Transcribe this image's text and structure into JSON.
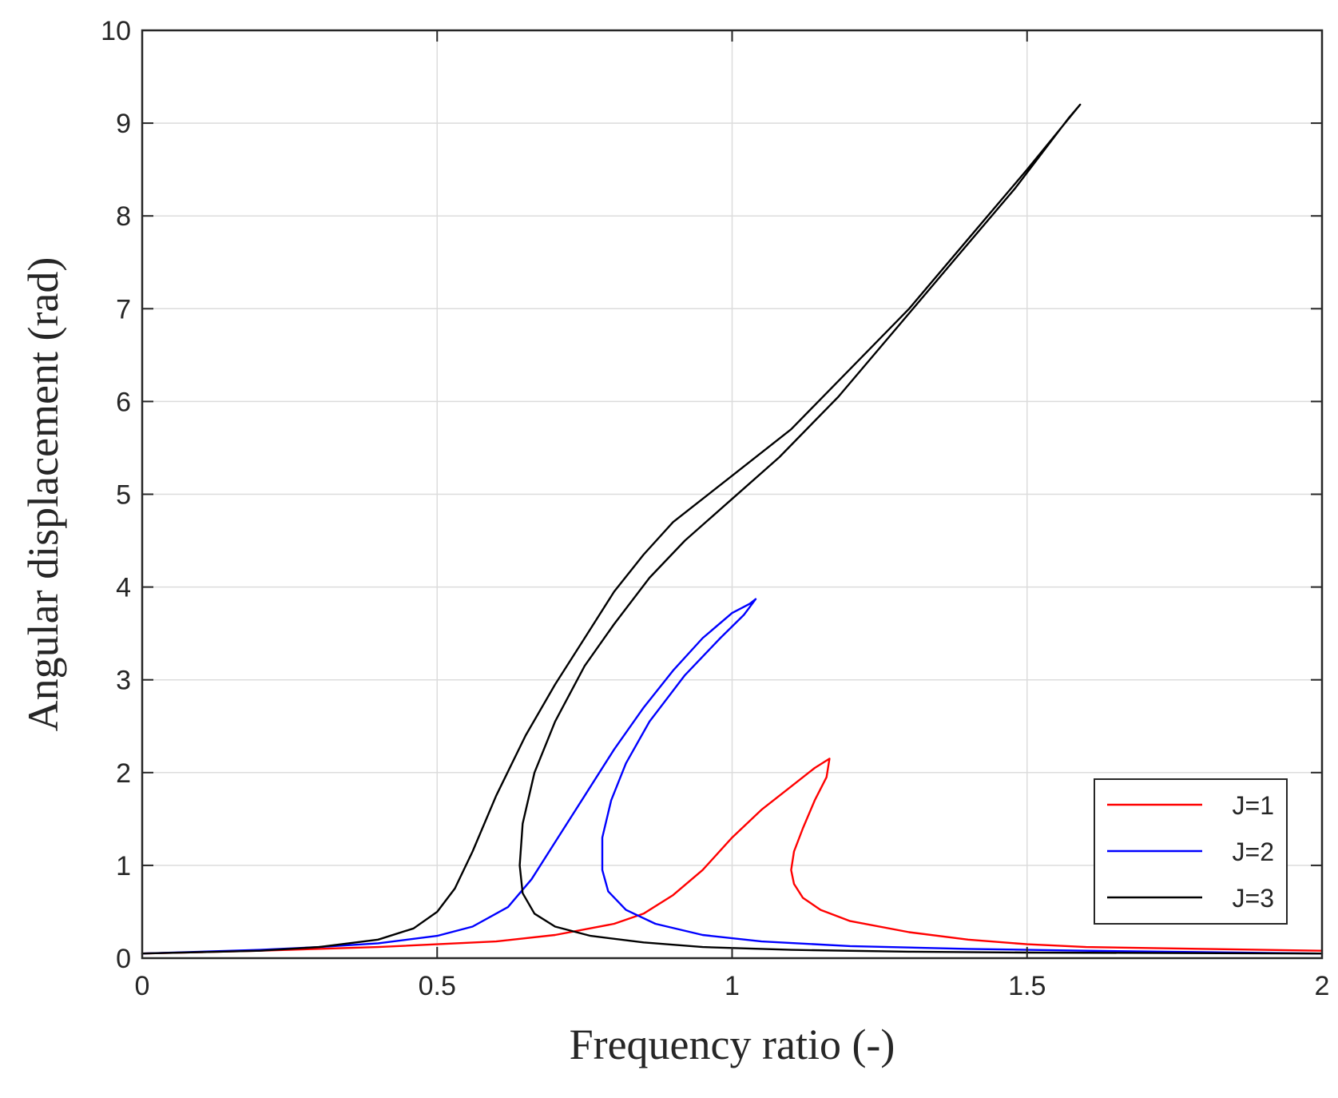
{
  "chart_data": {
    "type": "line",
    "title": "",
    "xlabel": "Frequency ratio (-)",
    "ylabel": "Angular displacement (rad)",
    "xlim": [
      0,
      2
    ],
    "ylim": [
      0,
      10
    ],
    "xticks": [
      0,
      0.5,
      1,
      1.5,
      2
    ],
    "xtick_labels": [
      "0",
      "0.5",
      "1",
      "1.5",
      "2"
    ],
    "yticks": [
      0,
      1,
      2,
      3,
      4,
      5,
      6,
      7,
      8,
      9,
      10
    ],
    "ytick_labels": [
      "0",
      "1",
      "2",
      "3",
      "4",
      "5",
      "6",
      "7",
      "8",
      "9",
      "10"
    ],
    "grid": true,
    "legend_position": "bottom-right",
    "series": [
      {
        "name": "J=1",
        "color": "#ff0000",
        "x": [
          0.0,
          0.2,
          0.4,
          0.6,
          0.7,
          0.8,
          0.85,
          0.9,
          0.95,
          1.0,
          1.05,
          1.1,
          1.14,
          1.165,
          1.16,
          1.14,
          1.12,
          1.105,
          1.1,
          1.105,
          1.12,
          1.15,
          1.2,
          1.3,
          1.4,
          1.5,
          1.6,
          1.8,
          2.0
        ],
        "y": [
          0.05,
          0.08,
          0.12,
          0.18,
          0.25,
          0.37,
          0.48,
          0.68,
          0.95,
          1.3,
          1.6,
          1.85,
          2.05,
          2.15,
          1.95,
          1.7,
          1.4,
          1.15,
          0.95,
          0.8,
          0.65,
          0.52,
          0.4,
          0.28,
          0.2,
          0.15,
          0.12,
          0.1,
          0.08
        ]
      },
      {
        "name": "J=2",
        "color": "#0000ff",
        "x": [
          0.0,
          0.2,
          0.3,
          0.4,
          0.5,
          0.56,
          0.62,
          0.66,
          0.7,
          0.75,
          0.8,
          0.85,
          0.9,
          0.95,
          1.0,
          1.03,
          1.04,
          1.02,
          0.98,
          0.92,
          0.86,
          0.82,
          0.795,
          0.78,
          0.78,
          0.79,
          0.82,
          0.87,
          0.95,
          1.05,
          1.2,
          1.4,
          1.6,
          2.0
        ],
        "y": [
          0.05,
          0.09,
          0.12,
          0.16,
          0.24,
          0.34,
          0.55,
          0.85,
          1.25,
          1.75,
          2.25,
          2.7,
          3.1,
          3.45,
          3.72,
          3.82,
          3.87,
          3.7,
          3.45,
          3.05,
          2.55,
          2.1,
          1.7,
          1.3,
          0.95,
          0.72,
          0.52,
          0.37,
          0.25,
          0.18,
          0.13,
          0.1,
          0.08,
          0.05
        ]
      },
      {
        "name": "J=3",
        "color": "#000000",
        "x": [
          0.0,
          0.2,
          0.3,
          0.4,
          0.46,
          0.5,
          0.53,
          0.56,
          0.6,
          0.65,
          0.7,
          0.75,
          0.8,
          0.85,
          0.9,
          1.0,
          1.1,
          1.2,
          1.3,
          1.4,
          1.5,
          1.59,
          1.57,
          1.48,
          1.38,
          1.28,
          1.18,
          1.08,
          1.0,
          0.92,
          0.86,
          0.8,
          0.75,
          0.7,
          0.665,
          0.645,
          0.64,
          0.645,
          0.665,
          0.7,
          0.76,
          0.85,
          0.95,
          1.1,
          1.3,
          1.5,
          2.0
        ],
        "y": [
          0.05,
          0.08,
          0.12,
          0.2,
          0.32,
          0.5,
          0.75,
          1.15,
          1.75,
          2.4,
          2.95,
          3.45,
          3.95,
          4.35,
          4.7,
          5.2,
          5.7,
          6.35,
          7.0,
          7.75,
          8.5,
          9.2,
          9.05,
          8.3,
          7.55,
          6.8,
          6.05,
          5.4,
          4.95,
          4.5,
          4.1,
          3.6,
          3.15,
          2.55,
          2.0,
          1.45,
          1.0,
          0.7,
          0.48,
          0.34,
          0.24,
          0.17,
          0.12,
          0.09,
          0.07,
          0.06,
          0.05
        ]
      }
    ]
  }
}
